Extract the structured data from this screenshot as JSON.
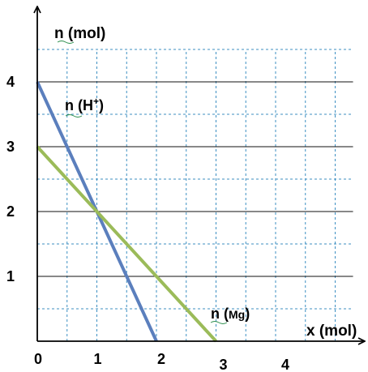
{
  "chart_data": {
    "type": "line",
    "title": "",
    "xlabel": "x (mol)",
    "ylabel": "n (mol)",
    "xlim": [
      0,
      5.3
    ],
    "ylim": [
      0,
      4.5
    ],
    "grid": true,
    "legend": "none",
    "x_ticks": [
      {
        "value": 0,
        "label": "0"
      },
      {
        "value": 1,
        "label": "1"
      },
      {
        "value": 2,
        "label": "2"
      },
      {
        "value": 3,
        "label": "3"
      },
      {
        "value": 4,
        "label": "4"
      }
    ],
    "y_ticks": [
      {
        "value": 1,
        "label": "1"
      },
      {
        "value": 2,
        "label": "2"
      },
      {
        "value": 3,
        "label": "3"
      },
      {
        "value": 4,
        "label": "4"
      }
    ],
    "series": [
      {
        "name": "n (H+)",
        "label_main": "n (H",
        "label_sup": "+",
        "label_end": ")",
        "color": "#5b7fbd",
        "points": [
          [
            0,
            4
          ],
          [
            1,
            2
          ],
          [
            2,
            0
          ]
        ]
      },
      {
        "name": "n (Mg)",
        "label_main": "n (",
        "label_small": "Mg",
        "label_end": ")",
        "color": "#9bbb59",
        "points": [
          [
            0,
            3
          ],
          [
            1,
            2
          ],
          [
            2,
            1
          ],
          [
            3,
            0
          ]
        ]
      }
    ]
  }
}
